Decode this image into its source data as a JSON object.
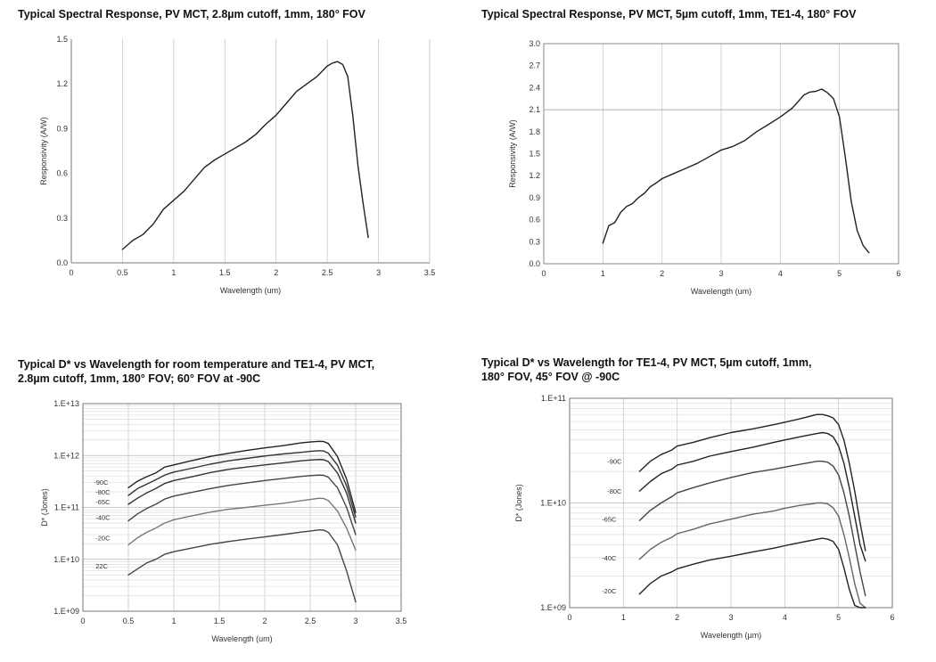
{
  "charts": [
    {
      "id": "c1",
      "title": "Typical Spectral Response, PV MCT, 2.8µm cutoff, 1mm, 180° FOV",
      "chart_data": {
        "type": "line",
        "title": "Typical Spectral Response, PV MCT, 2.8µm cutoff, 1mm, 180° FOV",
        "xlabel": "Wavelength (um)",
        "ylabel": "Responsivity (A/W)",
        "xlim": [
          0,
          3.5
        ],
        "ylim": [
          0,
          1.5
        ],
        "yscale": "linear",
        "xticks": [
          0,
          0.5,
          1,
          1.5,
          2,
          2.5,
          3,
          3.5
        ],
        "xtick_labels": [
          "0",
          "0.5",
          "1",
          "1.5",
          "2",
          "2.5",
          "3",
          "3.5"
        ],
        "yticks": [
          0,
          0.3,
          0.6,
          0.9,
          1.2,
          1.5
        ],
        "ytick_labels": [
          "0.0",
          "0.3",
          "0.6",
          "0.9",
          "1.2",
          "1.5"
        ],
        "grid": "vertical",
        "series": [
          {
            "label": "",
            "color": "#222222",
            "x": [
              0.5,
              0.6,
              0.7,
              0.8,
              0.9,
              1.0,
              1.1,
              1.2,
              1.3,
              1.4,
              1.5,
              1.6,
              1.7,
              1.8,
              1.9,
              2.0,
              2.1,
              2.2,
              2.3,
              2.4,
              2.5,
              2.55,
              2.6,
              2.65,
              2.7,
              2.75,
              2.8,
              2.85,
              2.9
            ],
            "y": [
              0.09,
              0.15,
              0.19,
              0.26,
              0.36,
              0.42,
              0.48,
              0.56,
              0.64,
              0.69,
              0.73,
              0.77,
              0.81,
              0.86,
              0.93,
              0.99,
              1.07,
              1.15,
              1.2,
              1.25,
              1.32,
              1.34,
              1.35,
              1.33,
              1.25,
              0.98,
              0.65,
              0.4,
              0.17
            ]
          }
        ]
      }
    },
    {
      "id": "c2",
      "title": "Typical Spectral Response, PV MCT, 5µm cutoff, 1mm, TE1-4, 180° FOV",
      "chart_data": {
        "type": "line",
        "title": "Typical Spectral Response, PV MCT, 5µm cutoff, 1mm, TE1-4, 180° FOV",
        "xlabel": "Wavelength (um)",
        "ylabel": "Responsivity (A/W)",
        "xlim": [
          0,
          6
        ],
        "ylim": [
          0,
          3.0
        ],
        "yscale": "linear",
        "xticks": [
          0,
          1,
          2,
          3,
          4,
          5,
          6
        ],
        "xtick_labels": [
          "0",
          "1",
          "2",
          "3",
          "4",
          "5",
          "6"
        ],
        "yticks": [
          0,
          0.3,
          0.6,
          0.9,
          1.2,
          1.5,
          1.8,
          2.1,
          2.4,
          2.7,
          3.0
        ],
        "ytick_labels": [
          "0.0",
          "0.3",
          "0.6",
          "0.9",
          "1.2",
          "1.5",
          "1.8",
          "2.1",
          "2.4",
          "2.7",
          "3.0"
        ],
        "grid": "vertical",
        "series": [
          {
            "label": "",
            "color": "#222222",
            "x": [
              1.0,
              1.1,
              1.2,
              1.3,
              1.4,
              1.5,
              1.6,
              1.7,
              1.8,
              1.9,
              2.0,
              2.2,
              2.4,
              2.6,
              2.8,
              3.0,
              3.2,
              3.4,
              3.6,
              3.8,
              4.0,
              4.2,
              4.4,
              4.5,
              4.6,
              4.7,
              4.8,
              4.9,
              5.0,
              5.1,
              5.2,
              5.3,
              5.4,
              5.5
            ],
            "y": [
              0.28,
              0.52,
              0.56,
              0.7,
              0.78,
              0.82,
              0.9,
              0.96,
              1.05,
              1.1,
              1.16,
              1.23,
              1.3,
              1.37,
              1.46,
              1.55,
              1.6,
              1.68,
              1.8,
              1.9,
              2.0,
              2.12,
              2.3,
              2.34,
              2.35,
              2.38,
              2.33,
              2.25,
              2.0,
              1.45,
              0.85,
              0.45,
              0.25,
              0.15
            ]
          }
        ]
      }
    },
    {
      "id": "c3",
      "title_line1": "Typical D* vs Wavelength for room temperature and TE1-4, PV MCT,",
      "title_line2": "2.8µm cutoff, 1mm, 180° FOV; 60° FOV at -90C",
      "chart_data": {
        "type": "line",
        "title": "Typical D* vs Wavelength for room temperature and TE1-4, PV MCT, 2.8µm cutoff, 1mm, 180° FOV; 60° FOV at -90C",
        "xlabel": "Wavelength (um)",
        "ylabel": "D* (Jones)",
        "xlim": [
          0,
          3.5
        ],
        "ylim": [
          1000000000.0,
          10000000000000.0
        ],
        "yscale": "log",
        "xticks": [
          0,
          0.5,
          1,
          1.5,
          2,
          2.5,
          3,
          3.5
        ],
        "xtick_labels": [
          "0",
          "0.5",
          "1",
          "1.5",
          "2",
          "2.5",
          "3",
          "3.5"
        ],
        "yticks": [
          1000000000.0,
          10000000000.0,
          100000000000.0,
          1000000000000.0,
          10000000000000.0
        ],
        "ytick_labels": [
          "1.E+09",
          "1.E+10",
          "1.E+11",
          "1.E+12",
          "1.E+13"
        ],
        "grid": "both",
        "x": [
          0.5,
          0.6,
          0.7,
          0.8,
          0.9,
          1.0,
          1.2,
          1.4,
          1.6,
          1.8,
          2.0,
          2.2,
          2.4,
          2.5,
          2.6,
          2.65,
          2.7,
          2.8,
          2.9,
          3.0
        ],
        "series": [
          {
            "label": "-90C",
            "label_x": 0.12,
            "label_y": 310000000000.0,
            "color": "#222222",
            "y": [
              240000000000.0,
              320000000000.0,
              390000000000.0,
              460000000000.0,
              600000000000.0,
              660000000000.0,
              800000000000.0,
              960000000000.0,
              1100000000000.0,
              1250000000000.0,
              1400000000000.0,
              1550000000000.0,
              1750000000000.0,
              1820000000000.0,
              1880000000000.0,
              1860000000000.0,
              1700000000000.0,
              950000000000.0,
              350000000000.0,
              80000000000.0
            ]
          },
          {
            "label": "-80C",
            "label_x": 0.14,
            "label_y": 200000000000.0,
            "color": "#333333",
            "y": [
              170000000000.0,
              230000000000.0,
              280000000000.0,
              340000000000.0,
              420000000000.0,
              480000000000.0,
              570000000000.0,
              680000000000.0,
              790000000000.0,
              880000000000.0,
              980000000000.0,
              1070000000000.0,
              1150000000000.0,
              1200000000000.0,
              1240000000000.0,
              1220000000000.0,
              1100000000000.0,
              650000000000.0,
              260000000000.0,
              65000000000.0
            ]
          },
          {
            "label": "-65C",
            "label_x": 0.14,
            "label_y": 130000000000.0,
            "color": "#333333",
            "y": [
              115000000000.0,
              150000000000.0,
              190000000000.0,
              230000000000.0,
              290000000000.0,
              330000000000.0,
              390000000000.0,
              470000000000.0,
              540000000000.0,
              600000000000.0,
              660000000000.0,
              720000000000.0,
              790000000000.0,
              820000000000.0,
              840000000000.0,
              830000000000.0,
              760000000000.0,
              460000000000.0,
              190000000000.0,
              50000000000.0
            ]
          },
          {
            "label": "-40C",
            "label_x": 0.14,
            "label_y": 65000000000.0,
            "color": "#444444",
            "y": [
              55000000000.0,
              75000000000.0,
              95000000000.0,
              115000000000.0,
              145000000000.0,
              165000000000.0,
              195000000000.0,
              230000000000.0,
              265000000000.0,
              295000000000.0,
              330000000000.0,
              360000000000.0,
              395000000000.0,
              410000000000.0,
              420000000000.0,
              415000000000.0,
              380000000000.0,
              240000000000.0,
              100000000000.0,
              30000000000.0
            ]
          },
          {
            "label": "-20C",
            "label_x": 0.14,
            "label_y": 26000000000.0,
            "color": "#777777",
            "y": [
              19000000000.0,
              26000000000.0,
              33000000000.0,
              40000000000.0,
              50000000000.0,
              58000000000.0,
              69000000000.0,
              81000000000.0,
              92000000000.0,
              100000000000.0,
              110000000000.0,
              120000000000.0,
              135000000000.0,
              142000000000.0,
              150000000000.0,
              148000000000.0,
              135000000000.0,
              85000000000.0,
              40000000000.0,
              15000000000.0
            ]
          },
          {
            "label": "22C",
            "label_x": 0.14,
            "label_y": 7500000000.0,
            "color": "#444444",
            "y": [
              5000000000.0,
              6500000000.0,
              8500000000.0,
              10000000000.0,
              12500000000.0,
              14000000000.0,
              16500000000.0,
              19500000000.0,
              22000000000.0,
              24500000000.0,
              27000000000.0,
              30000000000.0,
              33500000000.0,
              35000000000.0,
              37000000000.0,
              36500000000.0,
              33000000000.0,
              19000000000.0,
              6000000000.0,
              1500000000.0
            ]
          }
        ]
      }
    },
    {
      "id": "c4",
      "title_line1": "Typical D* vs Wavelength for TE1-4, PV MCT, 5µm cutoff, 1mm,",
      "title_line2": "180° FOV, 45° FOV @ -90C",
      "chart_data": {
        "type": "line",
        "title": "Typical D* vs Wavelength for TE1-4, PV MCT, 5µm cutoff, 1mm, 180° FOV, 45° FOV @ -90C",
        "xlabel": "Wavelength (µm)",
        "ylabel": "D* (Jones)",
        "xlim": [
          0,
          6
        ],
        "ylim": [
          1000000000.0,
          100000000000.0
        ],
        "yscale": "log",
        "xticks": [
          0,
          1,
          2,
          3,
          4,
          5,
          6
        ],
        "xtick_labels": [
          "0",
          "1",
          "2",
          "3",
          "4",
          "5",
          "6"
        ],
        "yticks": [
          1000000000.0,
          10000000000.0,
          100000000000.0
        ],
        "ytick_labels": [
          "1.E+09",
          "1.E+10",
          "1.E+11"
        ],
        "grid": "both",
        "x": [
          1.3,
          1.5,
          1.7,
          1.9,
          2.0,
          2.3,
          2.6,
          3.0,
          3.4,
          3.8,
          4.0,
          4.3,
          4.5,
          4.6,
          4.7,
          4.8,
          4.9,
          5.0,
          5.1,
          5.2,
          5.3,
          5.4,
          5.5
        ],
        "series": [
          {
            "label": "-90C",
            "label_x": 0.7,
            "label_y": 25000000000.0,
            "color": "#222222",
            "y": [
              20000000000.0,
              25000000000.0,
              29000000000.0,
              32000000000.0,
              35000000000.0,
              38000000000.0,
              42000000000.0,
              47000000000.0,
              51000000000.0,
              56000000000.0,
              59000000000.0,
              64000000000.0,
              68000000000.0,
              70000000000.0,
              70000000000.0,
              68000000000.0,
              65000000000.0,
              56000000000.0,
              40000000000.0,
              24000000000.0,
              13000000000.0,
              6500000000.0,
              3500000000.0
            ]
          },
          {
            "label": "-80C",
            "label_x": 0.7,
            "label_y": 13000000000.0,
            "color": "#222222",
            "y": [
              13000000000.0,
              16000000000.0,
              19000000000.0,
              21000000000.0,
              23000000000.0,
              25000000000.0,
              28000000000.0,
              31000000000.0,
              34000000000.0,
              38000000000.0,
              40000000000.0,
              43000000000.0,
              45000000000.0,
              46000000000.0,
              47000000000.0,
              46000000000.0,
              43000000000.0,
              35000000000.0,
              24000000000.0,
              14000000000.0,
              7500000000.0,
              4000000000.0,
              2800000000.0
            ]
          },
          {
            "label": "-65C",
            "label_x": 0.6,
            "label_y": 7000000000.0,
            "color": "#444444",
            "y": [
              6800000000.0,
              8500000000.0,
              10000000000.0,
              11500000000.0,
              12500000000.0,
              14000000000.0,
              15500000000.0,
              17500000000.0,
              19500000000.0,
              21000000000.0,
              22000000000.0,
              23500000000.0,
              24500000000.0,
              25000000000.0,
              25000000000.0,
              24500000000.0,
              22500000000.0,
              18500000000.0,
              12500000000.0,
              7500000000.0,
              4000000000.0,
              2200000000.0,
              1300000000.0
            ]
          },
          {
            "label": "-40C",
            "label_x": 0.6,
            "label_y": 3000000000.0,
            "color": "#666666",
            "y": [
              2900000000.0,
              3600000000.0,
              4200000000.0,
              4700000000.0,
              5100000000.0,
              5600000000.0,
              6300000000.0,
              7000000000.0,
              7800000000.0,
              8400000000.0,
              8900000000.0,
              9500000000.0,
              9800000000.0,
              10000000000.0,
              10000000000.0,
              9800000000.0,
              9000000000.0,
              7500000000.0,
              5000000000.0,
              3000000000.0,
              1700000000.0,
              1100000000.0,
              1000000000.0
            ]
          },
          {
            "label": "-20C",
            "label_x": 0.6,
            "label_y": 1450000000.0,
            "color": "#222222",
            "y": [
              1350000000.0,
              1700000000.0,
              2000000000.0,
              2200000000.0,
              2350000000.0,
              2600000000.0,
              2850000000.0,
              3100000000.0,
              3400000000.0,
              3700000000.0,
              3900000000.0,
              4200000000.0,
              4400000000.0,
              4500000000.0,
              4600000000.0,
              4500000000.0,
              4300000000.0,
              3600000000.0,
              2400000000.0,
              1500000000.0,
              1050000000.0,
              1000000000.0,
              1000000000.0
            ]
          }
        ]
      }
    }
  ]
}
